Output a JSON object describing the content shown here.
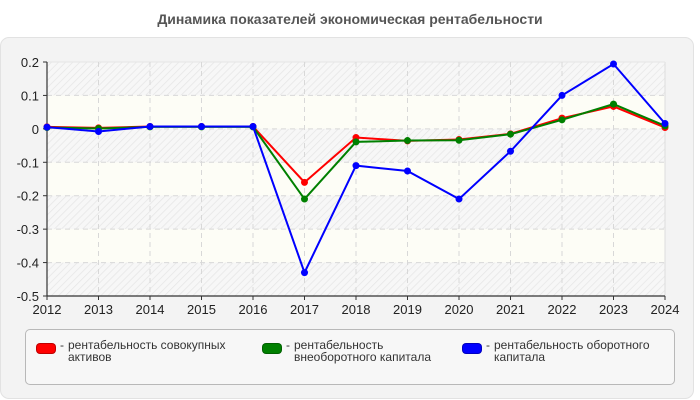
{
  "title": "Динамика показателей экономическая рентабельности",
  "chart_data": {
    "type": "line",
    "title": "Динамика показателей экономическая рентабельности",
    "xlabel": "",
    "ylabel": "",
    "x": [
      2012,
      2013,
      2014,
      2015,
      2016,
      2017,
      2018,
      2019,
      2020,
      2021,
      2022,
      2023,
      2024
    ],
    "ylim": [
      -0.5,
      0.2
    ],
    "yticks": [
      0.2,
      0.1,
      0,
      -0.1,
      -0.2,
      -0.3,
      -0.4,
      -0.5
    ],
    "ytick_labels": [
      "0.2",
      "0.1",
      "0",
      "-0.1",
      "-0.2",
      "-0.3",
      "-0.4",
      "-0.5"
    ],
    "grid": true,
    "legend_position": "bottom",
    "series": [
      {
        "name": "рентабельность совокупных активов",
        "color": "#ff0000",
        "values": [
          0.006,
          0.003,
          0.007,
          0.007,
          0.007,
          -0.16,
          -0.026,
          -0.036,
          -0.032,
          -0.015,
          0.032,
          0.067,
          0.004
        ]
      },
      {
        "name": "рентабельность внеоборотного капитала",
        "color": "#008000",
        "values": [
          0.004,
          0.001,
          0.006,
          0.006,
          0.006,
          -0.21,
          -0.039,
          -0.035,
          -0.034,
          -0.016,
          0.027,
          0.074,
          0.009
        ]
      },
      {
        "name": "рентабельность оборотного капитала",
        "color": "#0000ff",
        "values": [
          0.005,
          -0.008,
          0.007,
          0.007,
          0.007,
          -0.43,
          -0.11,
          -0.126,
          -0.21,
          -0.067,
          0.1,
          0.194,
          0.016
        ]
      }
    ]
  },
  "legend": {
    "items": [
      {
        "dash": "-",
        "line1": "рентабельность совокупных",
        "line2": "активов",
        "color": "#ff0000"
      },
      {
        "dash": "-",
        "line1": "рентабельность",
        "line2": "внеоборотного капитала",
        "color": "#008000"
      },
      {
        "dash": "-",
        "line1": "рентабельность оборотного",
        "line2": "капитала",
        "color": "#0000ff"
      }
    ]
  }
}
